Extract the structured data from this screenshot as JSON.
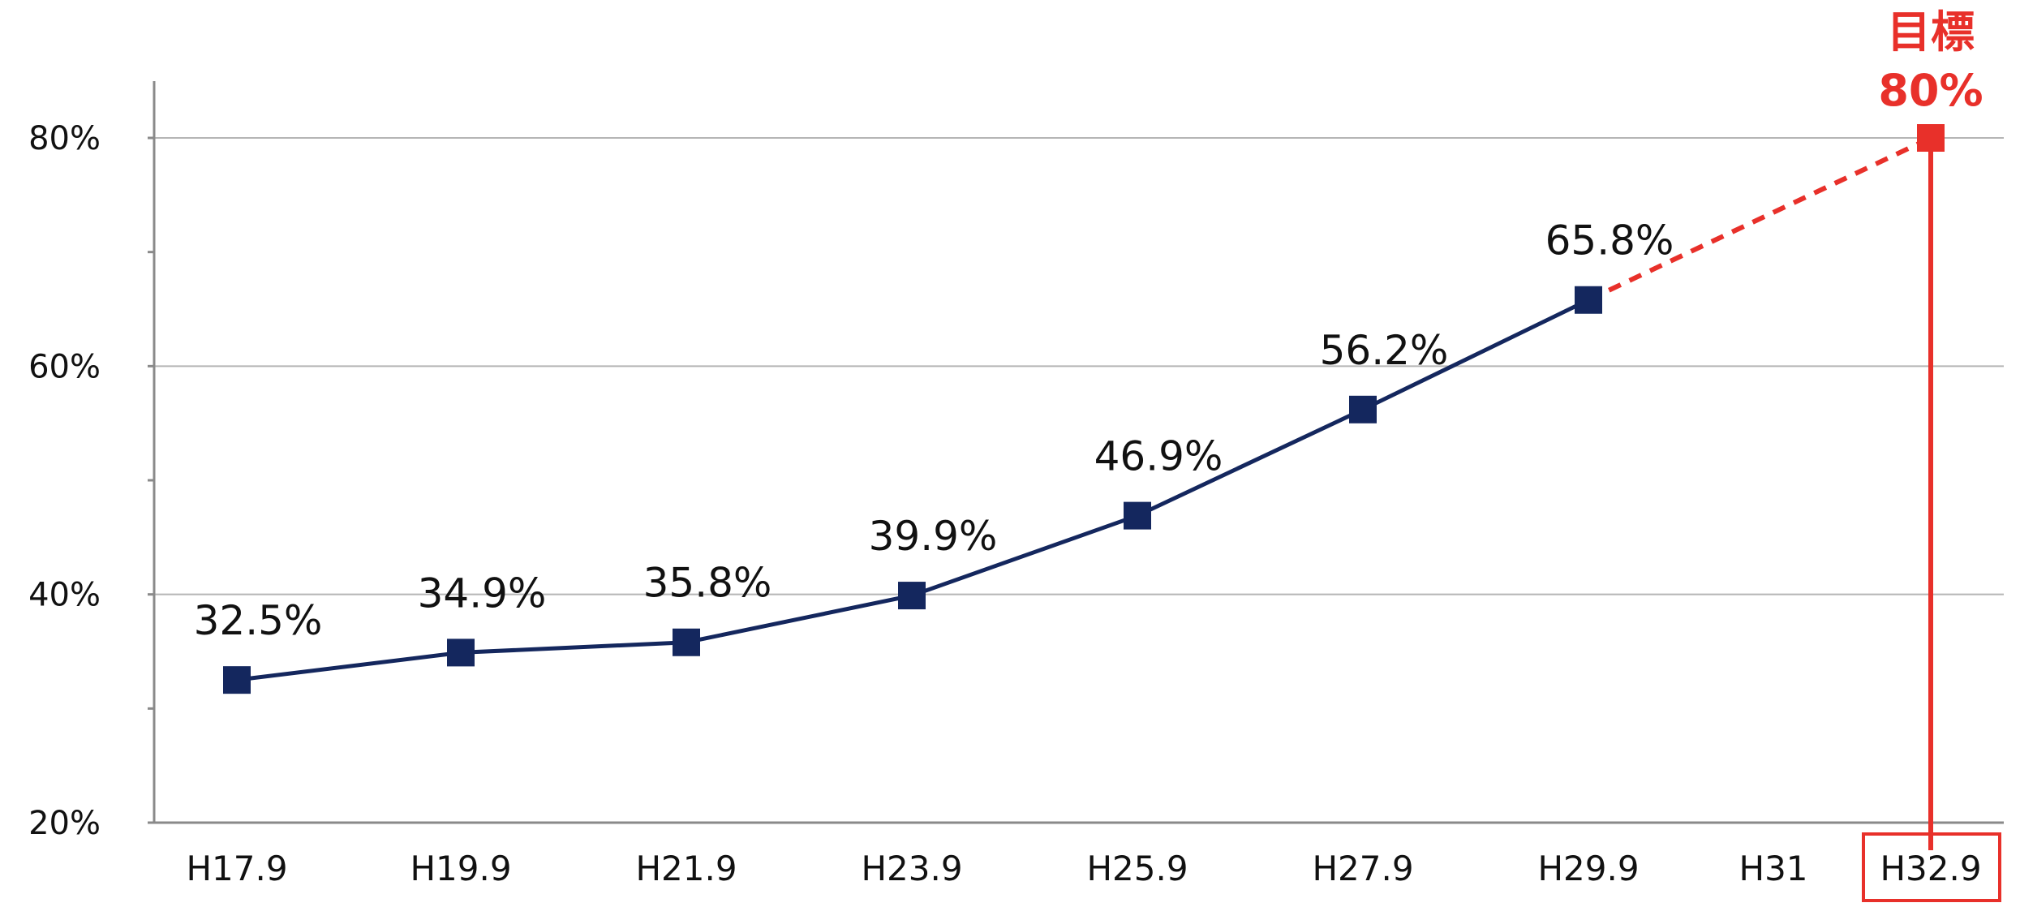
{
  "chart_data": {
    "type": "line",
    "categories": [
      "H17.9",
      "H19.9",
      "H21.9",
      "H23.9",
      "H25.9",
      "H27.9",
      "H29.9",
      "H31",
      "H32.9"
    ],
    "series": [
      {
        "values": [
          32.5,
          34.9,
          35.8,
          39.9,
          46.9,
          56.2,
          65.8,
          null,
          null
        ],
        "data_labels": [
          "32.5%",
          "34.9%",
          "35.8%",
          "39.9%",
          "46.9%",
          "56.2%",
          "65.8%",
          "",
          ""
        ],
        "color": "#14275e"
      }
    ],
    "target": {
      "category": "H32.9",
      "value": 80,
      "label_top": "目標",
      "label_value": "80%",
      "color": "#e8302a",
      "line_style": "dashed"
    },
    "y_ticks": [
      {
        "value": 20,
        "label": "20%"
      },
      {
        "value": 40,
        "label": "40%"
      },
      {
        "value": 60,
        "label": "60%"
      },
      {
        "value": 80,
        "label": "80%"
      }
    ],
    "y_minor_ticks": [
      30,
      50,
      70
    ],
    "ylim": [
      20,
      80
    ],
    "grid": true,
    "title": "",
    "xlabel": "",
    "ylabel": ""
  }
}
